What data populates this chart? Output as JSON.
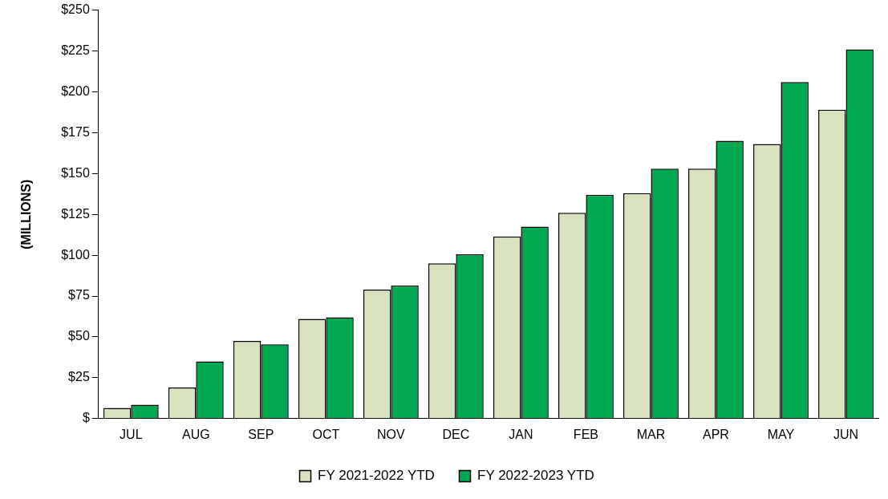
{
  "chart_data": {
    "type": "bar",
    "ylabel": "(MILLIONS)",
    "categories": [
      "JUL",
      "AUG",
      "SEP",
      "OCT",
      "NOV",
      "DEC",
      "JAN",
      "FEB",
      "MAR",
      "APR",
      "MAY",
      "JUN"
    ],
    "series": [
      {
        "name": "FY 2021-2022 YTD",
        "color": "#d9e4bf",
        "values": [
          6.5,
          19,
          47.5,
          61,
          79,
          95,
          111.5,
          126,
          138,
          153,
          168,
          189
        ]
      },
      {
        "name": "FY 2022-2023 YTD",
        "color": "#00a94f",
        "values": [
          8.5,
          35,
          45.5,
          62,
          81.5,
          100.5,
          117.5,
          137,
          153,
          170,
          206,
          226
        ]
      }
    ],
    "ylim": [
      0,
      250
    ],
    "yticks": [
      {
        "value": 0,
        "label": "$"
      },
      {
        "value": 25,
        "label": "$25"
      },
      {
        "value": 50,
        "label": "$50"
      },
      {
        "value": 75,
        "label": "$75"
      },
      {
        "value": 100,
        "label": "$100"
      },
      {
        "value": 125,
        "label": "$125"
      },
      {
        "value": 150,
        "label": "$150"
      },
      {
        "value": 175,
        "label": "$175"
      },
      {
        "value": 200,
        "label": "$200"
      },
      {
        "value": 225,
        "label": "$225"
      },
      {
        "value": 250,
        "label": "$250"
      }
    ],
    "grid": false,
    "legend": "bottom"
  }
}
